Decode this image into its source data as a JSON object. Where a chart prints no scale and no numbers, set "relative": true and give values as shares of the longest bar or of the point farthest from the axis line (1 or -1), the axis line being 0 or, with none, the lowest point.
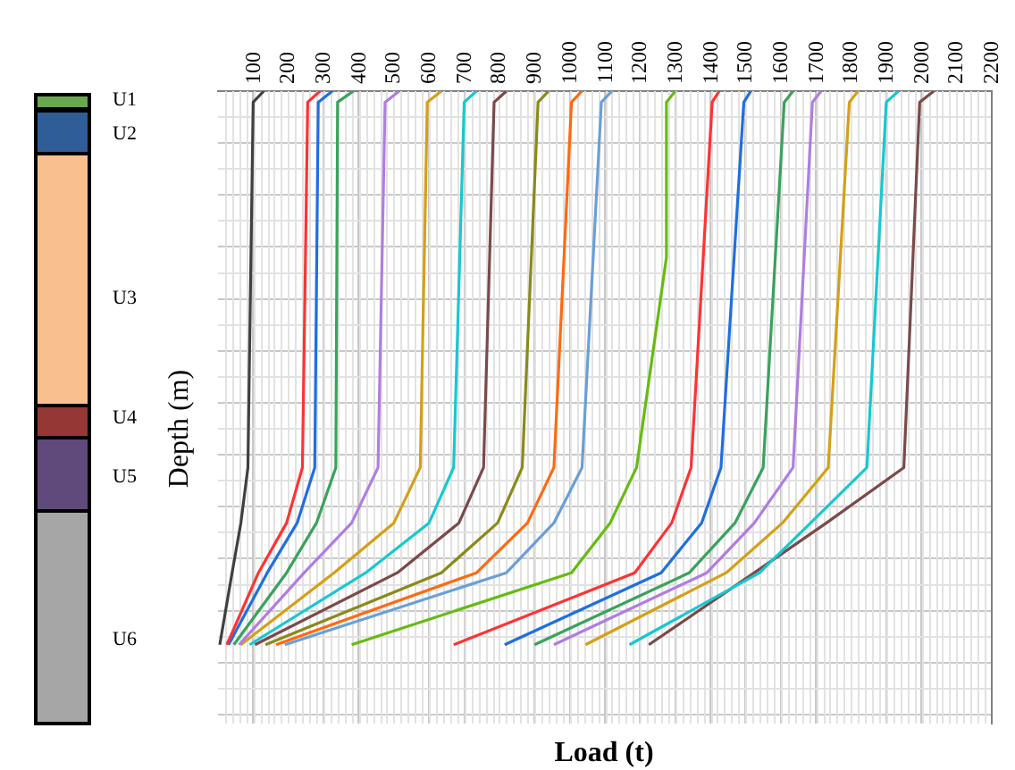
{
  "chart_data": {
    "type": "line",
    "xlabel": "Load (t)",
    "ylabel": "Depth (m)",
    "relative": true,
    "xlim": [
      0,
      2200
    ],
    "xticks": [
      100,
      200,
      300,
      400,
      500,
      600,
      700,
      800,
      900,
      1000,
      1100,
      1200,
      1300,
      1400,
      1500,
      1600,
      1700,
      1800,
      1900,
      2000,
      2100,
      2200
    ],
    "grid": true,
    "legend": false,
    "marker": "none",
    "line_style": "solid",
    "annotations": [
      "U1",
      "U2",
      "U3",
      "U4",
      "U5",
      "U6"
    ],
    "series": [
      {
        "color": "#404040",
        "x": [
          130,
          100,
          85,
          65,
          40,
          5
        ],
        "values": [
          0,
          -0.02,
          -0.68,
          -0.78,
          -0.87,
          -1
        ]
      },
      {
        "color": "#ff3333",
        "x": [
          290,
          255,
          240,
          195,
          115,
          25
        ],
        "values": [
          0,
          -0.02,
          -0.68,
          -0.78,
          -0.87,
          -1
        ]
      },
      {
        "color": "#1f6fe0",
        "x": [
          325,
          285,
          275,
          225,
          140,
          30
        ],
        "values": [
          0,
          -0.02,
          -0.68,
          -0.78,
          -0.87,
          -1
        ]
      },
      {
        "color": "#3aa25c",
        "x": [
          385,
          340,
          335,
          280,
          195,
          45
        ],
        "values": [
          0,
          -0.02,
          -0.68,
          -0.78,
          -0.87,
          -1
        ]
      },
      {
        "color": "#b07de0",
        "x": [
          515,
          475,
          455,
          380,
          245,
          60
        ],
        "values": [
          0,
          -0.02,
          -0.68,
          -0.78,
          -0.87,
          -1
        ]
      },
      {
        "color": "#d4a017",
        "x": [
          635,
          595,
          575,
          500,
          330,
          65
        ],
        "values": [
          0,
          -0.02,
          -0.68,
          -0.78,
          -0.87,
          -1
        ]
      },
      {
        "color": "#17c8d0",
        "x": [
          735,
          700,
          670,
          600,
          420,
          90
        ],
        "values": [
          0,
          -0.02,
          -0.68,
          -0.78,
          -0.87,
          -1
        ]
      },
      {
        "color": "#7a4a4a",
        "x": [
          820,
          785,
          755,
          685,
          510,
          105
        ],
        "values": [
          0,
          -0.02,
          -0.68,
          -0.78,
          -0.87,
          -1
        ]
      },
      {
        "color": "#8a8a1a",
        "x": [
          940,
          910,
          865,
          795,
          635,
          135
        ],
        "values": [
          0,
          -0.02,
          -0.68,
          -0.78,
          -0.87,
          -1
        ]
      },
      {
        "color": "#ff6a10",
        "x": [
          1035,
          1005,
          955,
          880,
          735,
          165
        ],
        "values": [
          0,
          -0.02,
          -0.68,
          -0.78,
          -0.87,
          -1
        ]
      },
      {
        "color": "#6a9fd8",
        "x": [
          1120,
          1090,
          1035,
          955,
          820,
          190
        ],
        "values": [
          0,
          -0.02,
          -0.68,
          -0.78,
          -0.87,
          -1
        ]
      },
      {
        "color": "#66bb11",
        "x": [
          1300,
          1275,
          1275,
          1190,
          1115,
          1005,
          380
        ],
        "values": [
          0,
          -0.02,
          -0.3,
          -0.68,
          -0.78,
          -0.87,
          -1
        ]
      },
      {
        "color": "#ff3333",
        "x": [
          1425,
          1405,
          1345,
          1290,
          1185,
          670
        ],
        "values": [
          0,
          -0.02,
          -0.68,
          -0.78,
          -0.87,
          -1
        ]
      },
      {
        "color": "#1f6fe0",
        "x": [
          1515,
          1495,
          1430,
          1375,
          1260,
          815
        ],
        "values": [
          0,
          -0.02,
          -0.68,
          -0.78,
          -0.87,
          -1
        ]
      },
      {
        "color": "#3aa25c",
        "x": [
          1635,
          1610,
          1550,
          1470,
          1340,
          900
        ],
        "values": [
          0,
          -0.02,
          -0.68,
          -0.78,
          -0.87,
          -1
        ]
      },
      {
        "color": "#b07de0",
        "x": [
          1715,
          1690,
          1635,
          1525,
          1390,
          955
        ],
        "values": [
          0,
          -0.02,
          -0.68,
          -0.78,
          -0.87,
          -1
        ]
      },
      {
        "color": "#d4a017",
        "x": [
          1820,
          1795,
          1735,
          1605,
          1445,
          1045
        ],
        "values": [
          0,
          -0.02,
          -0.68,
          -0.78,
          -0.87,
          -1
        ]
      },
      {
        "color": "#17c8d0",
        "x": [
          1935,
          1900,
          1845,
          1685,
          1540,
          1170
        ],
        "values": [
          0,
          -0.02,
          -0.68,
          -0.78,
          -0.87,
          -1
        ]
      },
      {
        "color": "#7a4a4a",
        "x": [
          2035,
          1995,
          1950,
          1730,
          1525,
          1225
        ],
        "values": [
          0,
          -0.02,
          -0.68,
          -0.78,
          -0.87,
          -1
        ]
      }
    ]
  }
}
